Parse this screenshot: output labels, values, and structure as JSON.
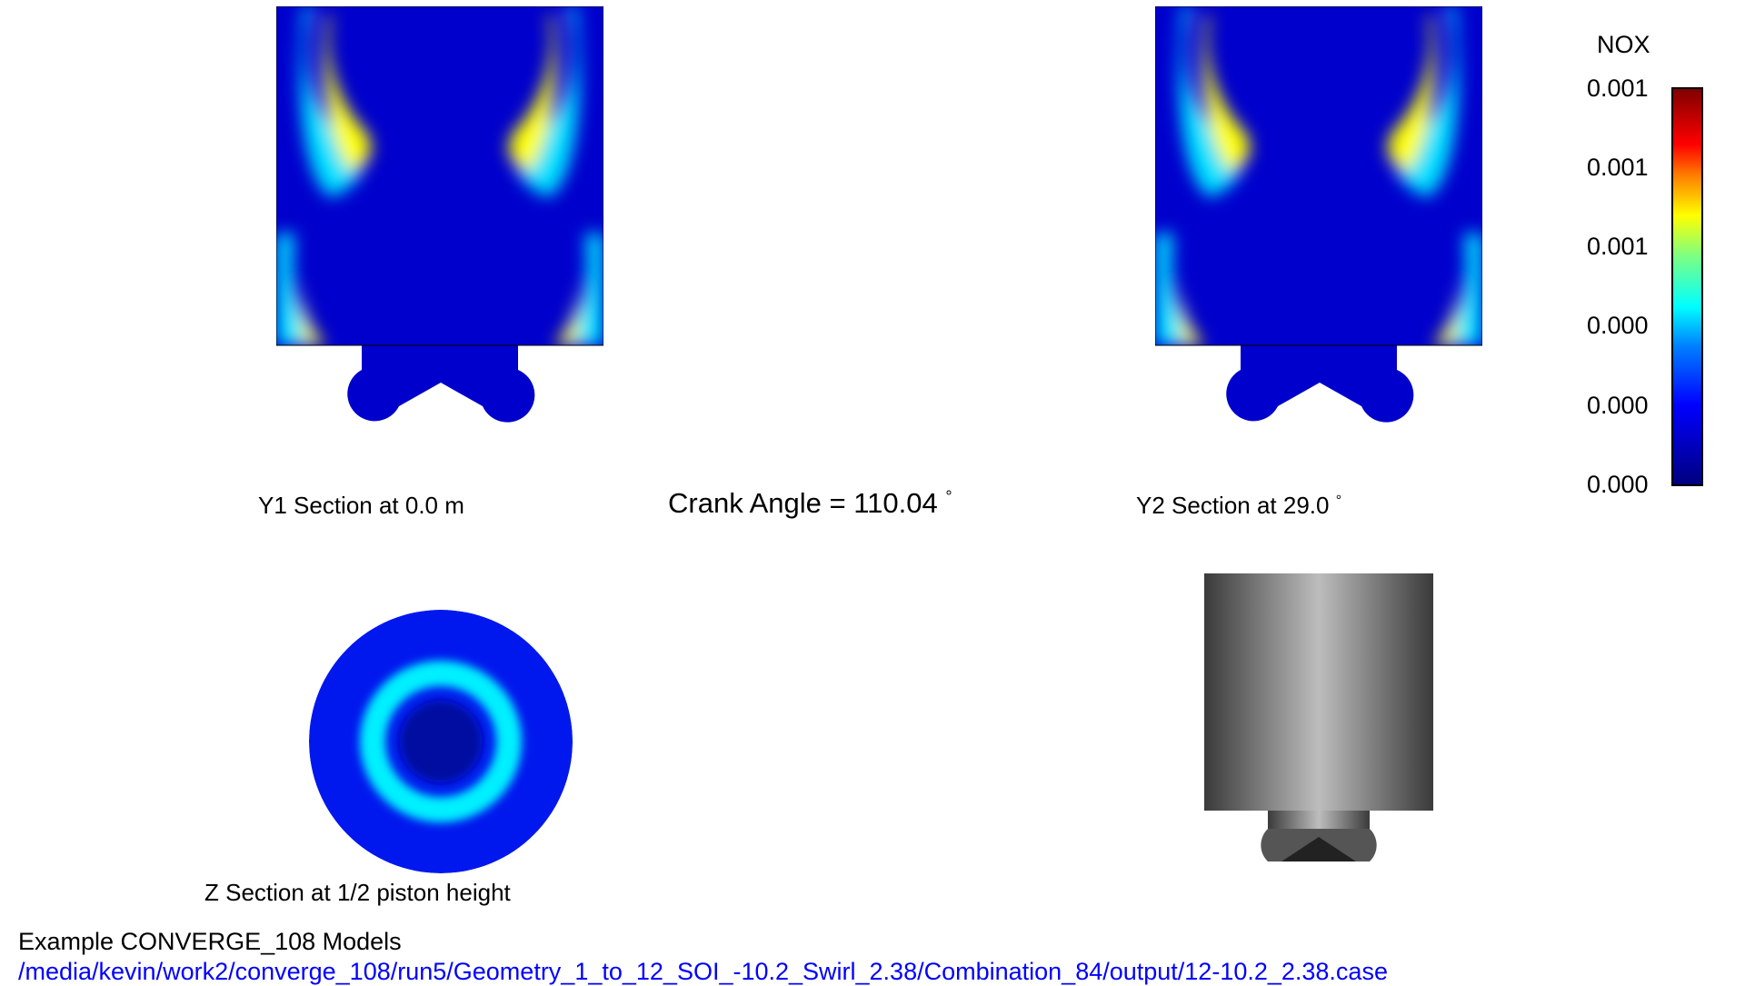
{
  "header": {
    "crank_angle_label": "Crank Angle = 110.04",
    "degree_symbol": "°"
  },
  "panels": {
    "y1": {
      "label": "Y1 Section at 0.0 m"
    },
    "y2": {
      "label": "Y2 Section at 29.0",
      "degree_symbol": "°"
    },
    "z": {
      "label": "Z Section at 1/2 piston height"
    }
  },
  "legend": {
    "variable": "NOX",
    "tick_labels": [
      "0.001",
      "0.001",
      "0.001",
      "0.000",
      "0.000",
      "0.000"
    ],
    "colormap": "jet",
    "colors": {
      "low": "#00007f",
      "mid": "#00ffff",
      "high": "#800000"
    }
  },
  "footer": {
    "title": "Example CONVERGE_108 Models",
    "path": "/media/kevin/work2/converge_108/run5/Geometry_1_to_12_SOI_-10.2_Swirl_2.38/Combination_84/output/12-10.2_2.38.case",
    "path_color": "#0000ff"
  }
}
